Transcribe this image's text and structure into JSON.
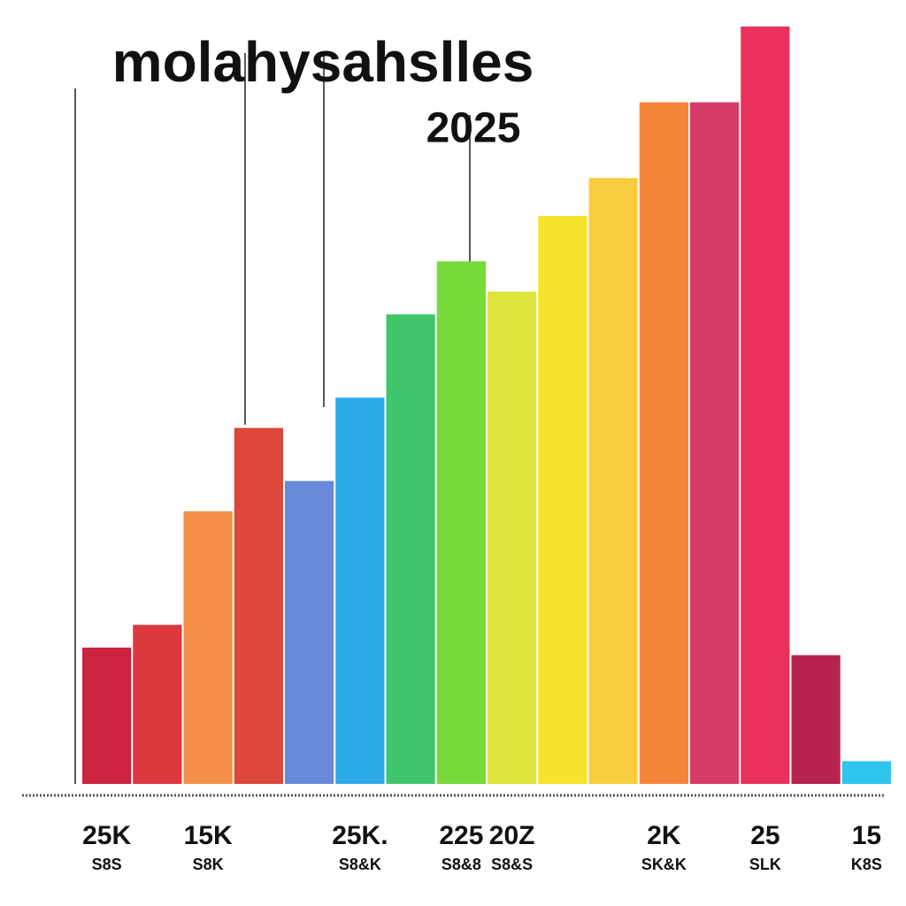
{
  "chart_data": {
    "type": "bar",
    "title": "molahysahslles",
    "subtitle": "2025",
    "categories": [
      "25K",
      null,
      "15K",
      null,
      null,
      "25K.",
      null,
      "225",
      "20Z",
      null,
      null,
      "2K",
      null,
      "25",
      null,
      "15"
    ],
    "sublabels": [
      "S8S",
      null,
      "S8K",
      null,
      null,
      "S8&K",
      null,
      "S8&8",
      "S8&S",
      null,
      null,
      "SK&K",
      null,
      "SLK",
      null,
      "K8S"
    ],
    "values": [
      18,
      21,
      36,
      47,
      40,
      51,
      62,
      69,
      65,
      75,
      80,
      90,
      90,
      100,
      17,
      3
    ],
    "colors": [
      "#c8102e",
      "#d9282f",
      "#f4873a",
      "#d8382a",
      "#5b7fd6",
      "#1aa3e8",
      "#2fc060",
      "#6fd62a",
      "#d9e22a",
      "#f5e21a",
      "#f8c830",
      "#f47b2a",
      "#d42a5a",
      "#e8204f",
      "#b01040",
      "#1ec0ee"
    ],
    "ylim": [
      0,
      100
    ]
  }
}
